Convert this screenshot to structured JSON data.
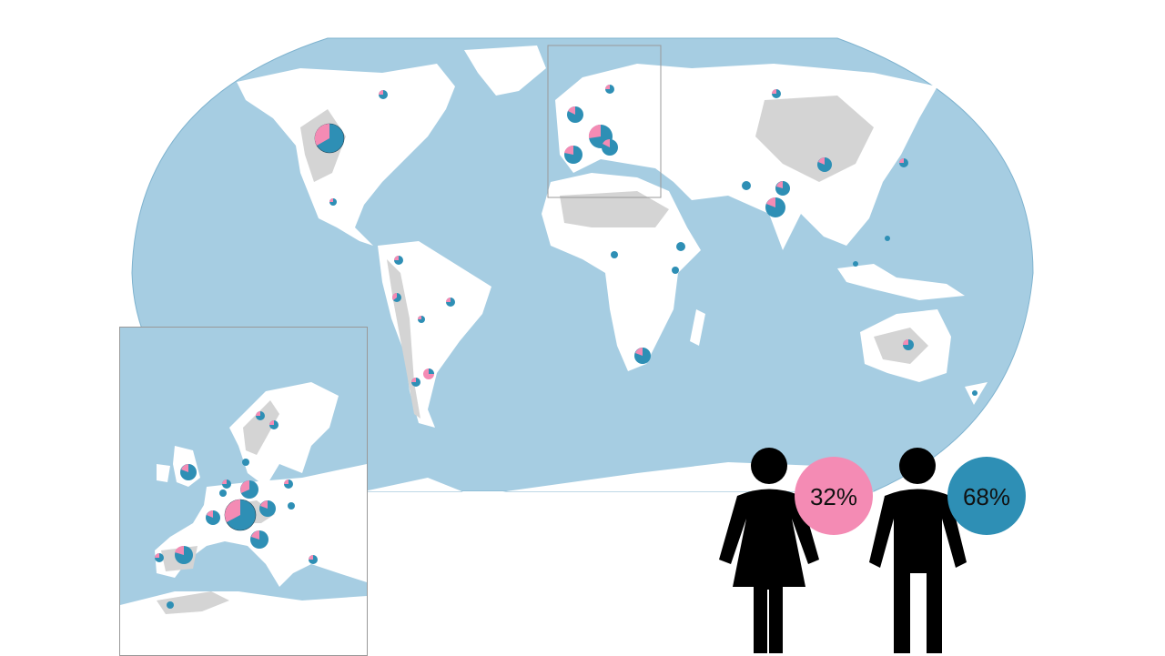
{
  "colors": {
    "ocean": "#a6cde2",
    "land": "#ffffff",
    "terrain": "#d4d4d4",
    "female": "#f48bb4",
    "male": "#2e8fb5",
    "figure": "#000000"
  },
  "gender_split": {
    "female": {
      "label": "32%",
      "share": 0.32,
      "icon": "woman-icon"
    },
    "male": {
      "label": "68%",
      "share": 0.68,
      "icon": "man-icon"
    }
  },
  "pies": [
    {
      "name": "north-america-west",
      "share_female": 0.3,
      "size": "large"
    },
    {
      "name": "north-america-east",
      "share_female": 0.4,
      "size": "small"
    },
    {
      "name": "mexico",
      "share_female": 0.45,
      "size": "small"
    },
    {
      "name": "colombia",
      "share_female": 0.5,
      "size": "small"
    },
    {
      "name": "peru",
      "share_female": 0.6,
      "size": "small"
    },
    {
      "name": "brazil",
      "share_female": 0.5,
      "size": "small"
    },
    {
      "name": "argentina",
      "share_female": 0.55,
      "size": "small"
    },
    {
      "name": "uk",
      "share_female": 0.2,
      "size": "medium"
    },
    {
      "name": "spain",
      "share_female": 0.3,
      "size": "medium"
    },
    {
      "name": "central-europe",
      "share_female": 0.35,
      "size": "large"
    },
    {
      "name": "india",
      "share_female": 0.3,
      "size": "medium"
    },
    {
      "name": "china",
      "share_female": 0.25,
      "size": "small"
    },
    {
      "name": "japan",
      "share_female": 0.2,
      "size": "small"
    },
    {
      "name": "south-africa",
      "share_female": 0.35,
      "size": "small"
    },
    {
      "name": "australia",
      "share_female": 0.5,
      "size": "small"
    }
  ]
}
